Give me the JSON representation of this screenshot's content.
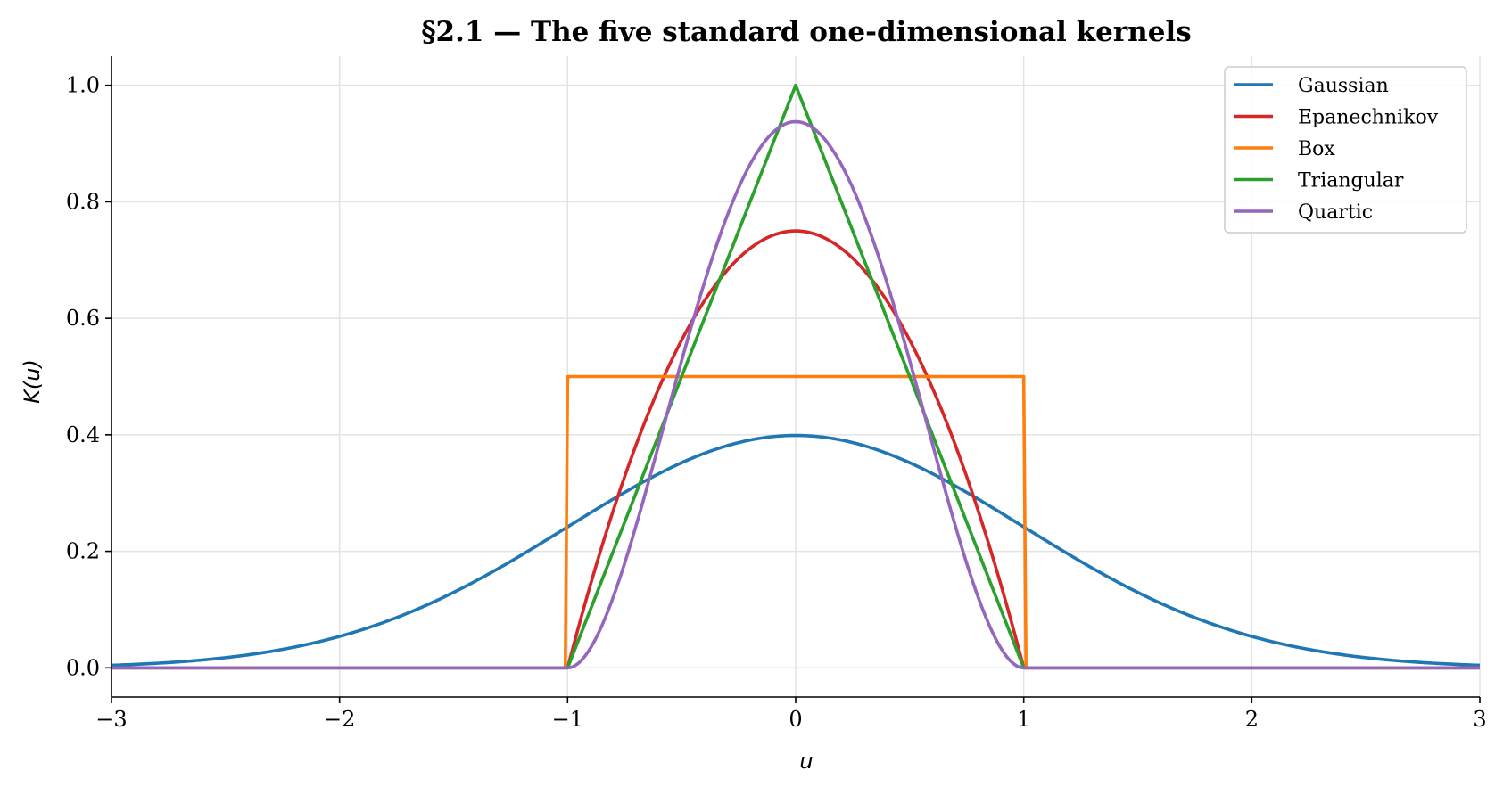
{
  "chart_data": {
    "type": "line",
    "title": "§2.1 — The five standard one-dimensional kernels",
    "xlabel": "u",
    "ylabel": "K(u)",
    "xlim": [
      -3,
      3
    ],
    "ylim": [
      -0.05,
      1.05
    ],
    "xticks": [
      -3,
      -2,
      -1,
      0,
      1,
      2,
      3
    ],
    "xtick_labels": [
      "−3",
      "−2",
      "−1",
      "0",
      "1",
      "2",
      "3"
    ],
    "yticks": [
      0.0,
      0.2,
      0.4,
      0.6,
      0.8,
      1.0
    ],
    "ytick_labels": [
      "0.0",
      "0.2",
      "0.4",
      "0.6",
      "0.8",
      "1.0"
    ],
    "grid": true,
    "legend_position": "top-right",
    "series": [
      {
        "name": "Gaussian",
        "color": "#1f77b4",
        "x": [
          -3,
          -2.75,
          -2.5,
          -2.25,
          -2,
          -1.75,
          -1.5,
          -1.25,
          -1,
          -0.75,
          -0.5,
          -0.25,
          0,
          0.25,
          0.5,
          0.75,
          1,
          1.25,
          1.5,
          1.75,
          2,
          2.25,
          2.5,
          2.75,
          3
        ],
        "y": [
          0.0044,
          0.0091,
          0.0175,
          0.0317,
          0.054,
          0.0863,
          0.1295,
          0.1826,
          0.242,
          0.3011,
          0.3521,
          0.3867,
          0.3989,
          0.3867,
          0.3521,
          0.3011,
          0.242,
          0.1826,
          0.1295,
          0.0863,
          0.054,
          0.0317,
          0.0175,
          0.0091,
          0.0044
        ]
      },
      {
        "name": "Epanechnikov",
        "color": "#d62728",
        "x": [
          -3,
          -1,
          -0.9,
          -0.8,
          -0.7,
          -0.6,
          -0.5,
          -0.4,
          -0.3,
          -0.2,
          -0.1,
          0,
          0.1,
          0.2,
          0.3,
          0.4,
          0.5,
          0.6,
          0.7,
          0.8,
          0.9,
          1,
          3
        ],
        "y": [
          0,
          0,
          0.1425,
          0.27,
          0.3825,
          0.48,
          0.5625,
          0.63,
          0.6825,
          0.72,
          0.7425,
          0.75,
          0.7425,
          0.72,
          0.6825,
          0.63,
          0.5625,
          0.48,
          0.3825,
          0.27,
          0.1425,
          0,
          0
        ]
      },
      {
        "name": "Box",
        "color": "#ff7f0e",
        "x": [
          -3,
          -1.01,
          -1,
          1,
          1.01,
          3
        ],
        "y": [
          0,
          0,
          0.5,
          0.5,
          0,
          0
        ]
      },
      {
        "name": "Triangular",
        "color": "#2ca02c",
        "x": [
          -3,
          -1,
          0,
          1,
          3
        ],
        "y": [
          0,
          0,
          1.0,
          0,
          0
        ]
      },
      {
        "name": "Quartic",
        "color": "#9467bd",
        "x": [
          -3,
          -1,
          -0.9,
          -0.8,
          -0.7,
          -0.6,
          -0.5,
          -0.4,
          -0.3,
          -0.2,
          -0.1,
          0,
          0.1,
          0.2,
          0.3,
          0.4,
          0.5,
          0.6,
          0.7,
          0.8,
          0.9,
          1,
          3
        ],
        "y": [
          0,
          0,
          0.0339,
          0.1215,
          0.2389,
          0.384,
          0.5273,
          0.6615,
          0.7757,
          0.864,
          0.9191,
          0.9375,
          0.9191,
          0.864,
          0.7757,
          0.6615,
          0.5273,
          0.384,
          0.2389,
          0.1215,
          0.0339,
          0,
          0
        ]
      }
    ]
  }
}
